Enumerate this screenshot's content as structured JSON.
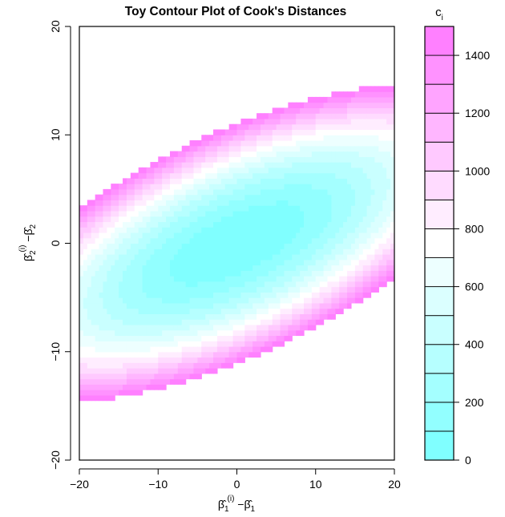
{
  "chart_data": {
    "type": "heatmap",
    "subtype": "filled-contour",
    "title": "Toy Contour Plot of Cook's Distances",
    "xlabel": {
      "base": "β",
      "sub": "1",
      "sup": "(i)",
      "minus": "−",
      "hatbase": "β",
      "hatsub": "1"
    },
    "ylabel": {
      "base": "β",
      "sub": "2",
      "sup": "(i)",
      "minus": "−",
      "hatbase": "β",
      "hatsub": "2"
    },
    "xlim": [
      -20,
      20
    ],
    "ylim": [
      -20,
      20
    ],
    "xticks": [
      -20,
      -10,
      0,
      10,
      20
    ],
    "yticks": [
      -20,
      -10,
      0,
      10,
      20
    ],
    "xtick_labels": [
      "−20",
      "−10",
      "0",
      "10",
      "20"
    ],
    "ytick_labels": [
      "−20",
      "−10",
      "0",
      "10",
      "20"
    ],
    "colorbar": {
      "title": "c",
      "title_sub": "i",
      "range": [
        0,
        1500
      ],
      "levels": [
        0,
        100,
        200,
        300,
        400,
        500,
        600,
        700,
        800,
        900,
        1000,
        1100,
        1200,
        1300,
        1400,
        1500
      ],
      "ticks": [
        0,
        200,
        400,
        600,
        800,
        1000,
        1200,
        1400
      ],
      "tick_labels": [
        "0",
        "200",
        "400",
        "600",
        "800",
        "1000",
        "1200",
        "1400"
      ]
    },
    "color_low": "#80ffff",
    "color_mid": "#ffffff",
    "color_high": "#ff80ff",
    "surface": {
      "form": "quadratic",
      "center": [
        0,
        0
      ],
      "a_xx": 2.33,
      "a_yy": 12.23,
      "a_xy": -3.48,
      "note_values_above_max_not_drawn": true
    },
    "grid": false
  }
}
